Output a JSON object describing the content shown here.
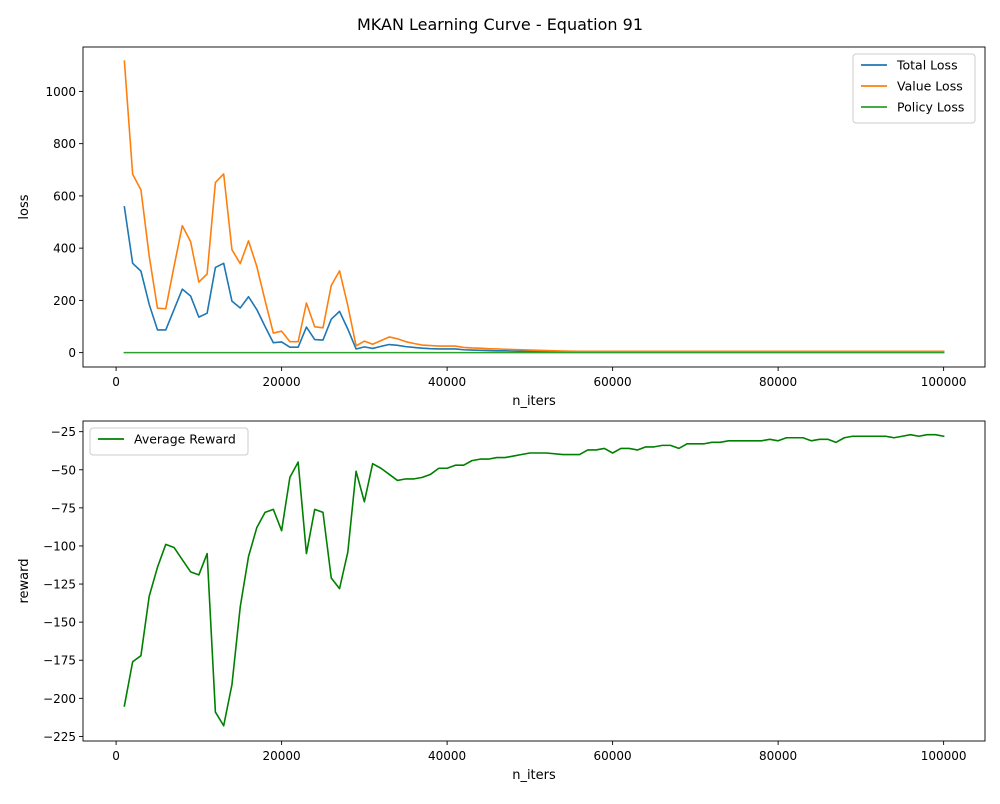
{
  "figure": {
    "title": "MKAN Learning Curve - Equation 91"
  },
  "chart_data": [
    {
      "type": "line",
      "xlabel": "n_iters",
      "ylabel": "loss",
      "xlim": [
        -4000,
        105000
      ],
      "ylim": [
        -55,
        1170
      ],
      "xticks": [
        0,
        20000,
        40000,
        60000,
        80000,
        100000
      ],
      "yticks": [
        0,
        200,
        400,
        600,
        800,
        1000
      ],
      "grid": false,
      "legend_position": "upper right",
      "x": [
        1000,
        2000,
        3000,
        4000,
        5000,
        6000,
        7000,
        8000,
        9000,
        10000,
        11000,
        12000,
        13000,
        14000,
        15000,
        16000,
        17000,
        18000,
        19000,
        20000,
        21000,
        22000,
        23000,
        24000,
        25000,
        26000,
        27000,
        28000,
        29000,
        30000,
        31000,
        32000,
        33000,
        34000,
        35000,
        36000,
        37000,
        38000,
        39000,
        40000,
        41000,
        42000,
        43000,
        44000,
        45000,
        46000,
        47000,
        48000,
        49000,
        50000,
        52000,
        54000,
        56000,
        58000,
        60000,
        62000,
        64000,
        66000,
        68000,
        70000,
        72000,
        74000,
        76000,
        78000,
        80000,
        82000,
        84000,
        86000,
        88000,
        90000,
        92000,
        94000,
        96000,
        98000,
        100000
      ],
      "series": [
        {
          "name": "Total Loss",
          "color": "#1f77b4",
          "values": [
            558,
            342,
            312,
            185,
            87,
            87,
            165,
            243,
            217,
            136,
            151,
            326,
            342,
            197,
            171,
            214,
            165,
            100,
            38,
            41,
            21,
            21,
            98,
            50,
            48,
            128,
            158,
            90,
            14,
            22,
            16,
            24,
            31,
            28,
            23,
            20,
            17,
            15,
            14,
            14,
            14,
            11,
            10,
            9,
            8,
            7,
            7,
            6,
            5,
            5,
            4,
            3,
            3,
            3,
            3,
            3,
            3,
            3,
            3,
            3,
            3,
            3,
            3,
            3,
            3,
            3,
            3,
            3,
            3,
            3,
            3,
            3,
            3,
            3,
            3
          ]
        },
        {
          "name": "Value Loss",
          "color": "#ff7f0e",
          "values": [
            1116,
            683,
            623,
            370,
            170,
            168,
            330,
            486,
            425,
            270,
            301,
            651,
            684,
            394,
            341,
            428,
            330,
            200,
            75,
            82,
            42,
            42,
            190,
            99,
            95,
            257,
            313,
            180,
            26,
            44,
            32,
            46,
            60,
            53,
            42,
            35,
            29,
            27,
            25,
            25,
            25,
            20,
            18,
            17,
            15,
            14,
            13,
            12,
            11,
            10,
            8,
            6,
            5,
            5,
            5,
            5,
            5,
            5,
            5,
            5,
            5,
            5,
            5,
            5,
            5,
            5,
            5,
            5,
            5,
            5,
            5,
            5,
            5,
            5,
            5
          ]
        },
        {
          "name": "Policy Loss",
          "color": "#2ca02c",
          "values": [
            0,
            0,
            0,
            0,
            0,
            0,
            0,
            0,
            0,
            0,
            0,
            0,
            0,
            0,
            0,
            0,
            0,
            0,
            0,
            0,
            0,
            0,
            0,
            0,
            0,
            0,
            0,
            0,
            0,
            0,
            0,
            0,
            0,
            0,
            0,
            0,
            0,
            0,
            0,
            0,
            0,
            0,
            0,
            0,
            0,
            0,
            0,
            0,
            0,
            0,
            0,
            0,
            0,
            0,
            0,
            0,
            0,
            0,
            0,
            0,
            0,
            0,
            0,
            0,
            0,
            0,
            0,
            0,
            0,
            0,
            0,
            0,
            0,
            0,
            0
          ]
        }
      ]
    },
    {
      "type": "line",
      "xlabel": "n_iters",
      "ylabel": "reward",
      "xlim": [
        -4000,
        105000
      ],
      "ylim": [
        -228,
        -18
      ],
      "xticks": [
        0,
        20000,
        40000,
        60000,
        80000,
        100000
      ],
      "yticks": [
        -225,
        -200,
        -175,
        -150,
        -125,
        -100,
        -75,
        -50,
        -25
      ],
      "grid": false,
      "legend_position": "upper left",
      "x": [
        1000,
        2000,
        3000,
        4000,
        5000,
        6000,
        7000,
        8000,
        9000,
        10000,
        11000,
        12000,
        13000,
        14000,
        15000,
        16000,
        17000,
        18000,
        19000,
        20000,
        21000,
        22000,
        23000,
        24000,
        25000,
        26000,
        27000,
        28000,
        29000,
        30000,
        31000,
        32000,
        33000,
        34000,
        35000,
        36000,
        37000,
        38000,
        39000,
        40000,
        41000,
        42000,
        43000,
        44000,
        45000,
        46000,
        47000,
        48000,
        49000,
        50000,
        52000,
        54000,
        56000,
        57000,
        58000,
        59000,
        60000,
        61000,
        62000,
        63000,
        64000,
        65000,
        66000,
        67000,
        68000,
        69000,
        70000,
        71000,
        72000,
        73000,
        74000,
        75000,
        76000,
        77000,
        78000,
        79000,
        80000,
        81000,
        82000,
        83000,
        84000,
        85000,
        86000,
        87000,
        88000,
        89000,
        90000,
        91000,
        92000,
        93000,
        94000,
        95000,
        96000,
        97000,
        98000,
        99000,
        100000
      ],
      "series": [
        {
          "name": "Average Reward",
          "color": "#008000",
          "values": [
            -205,
            -176,
            -172,
            -133,
            -114,
            -99,
            -101,
            -109,
            -117,
            -119,
            -105,
            -209,
            -218,
            -191,
            -140,
            -107,
            -88,
            -78,
            -76,
            -90,
            -55,
            -45,
            -105,
            -76,
            -78,
            -121,
            -128,
            -104,
            -51,
            -71,
            -46,
            -49,
            -53,
            -57,
            -56,
            -56,
            -55,
            -53,
            -49,
            -49,
            -47,
            -47,
            -44,
            -43,
            -43,
            -42,
            -42,
            -41,
            -40,
            -39,
            -39,
            -40,
            -40,
            -37,
            -37,
            -36,
            -39,
            -36,
            -36,
            -37,
            -35,
            -35,
            -34,
            -34,
            -36,
            -33,
            -33,
            -33,
            -32,
            -32,
            -31,
            -31,
            -31,
            -31,
            -31,
            -30,
            -31,
            -29,
            -29,
            -29,
            -31,
            -30,
            -30,
            -32,
            -29,
            -28,
            -28,
            -28,
            -28,
            -28,
            -29,
            -28,
            -27,
            -28,
            -27,
            -27,
            -28
          ]
        }
      ]
    }
  ]
}
